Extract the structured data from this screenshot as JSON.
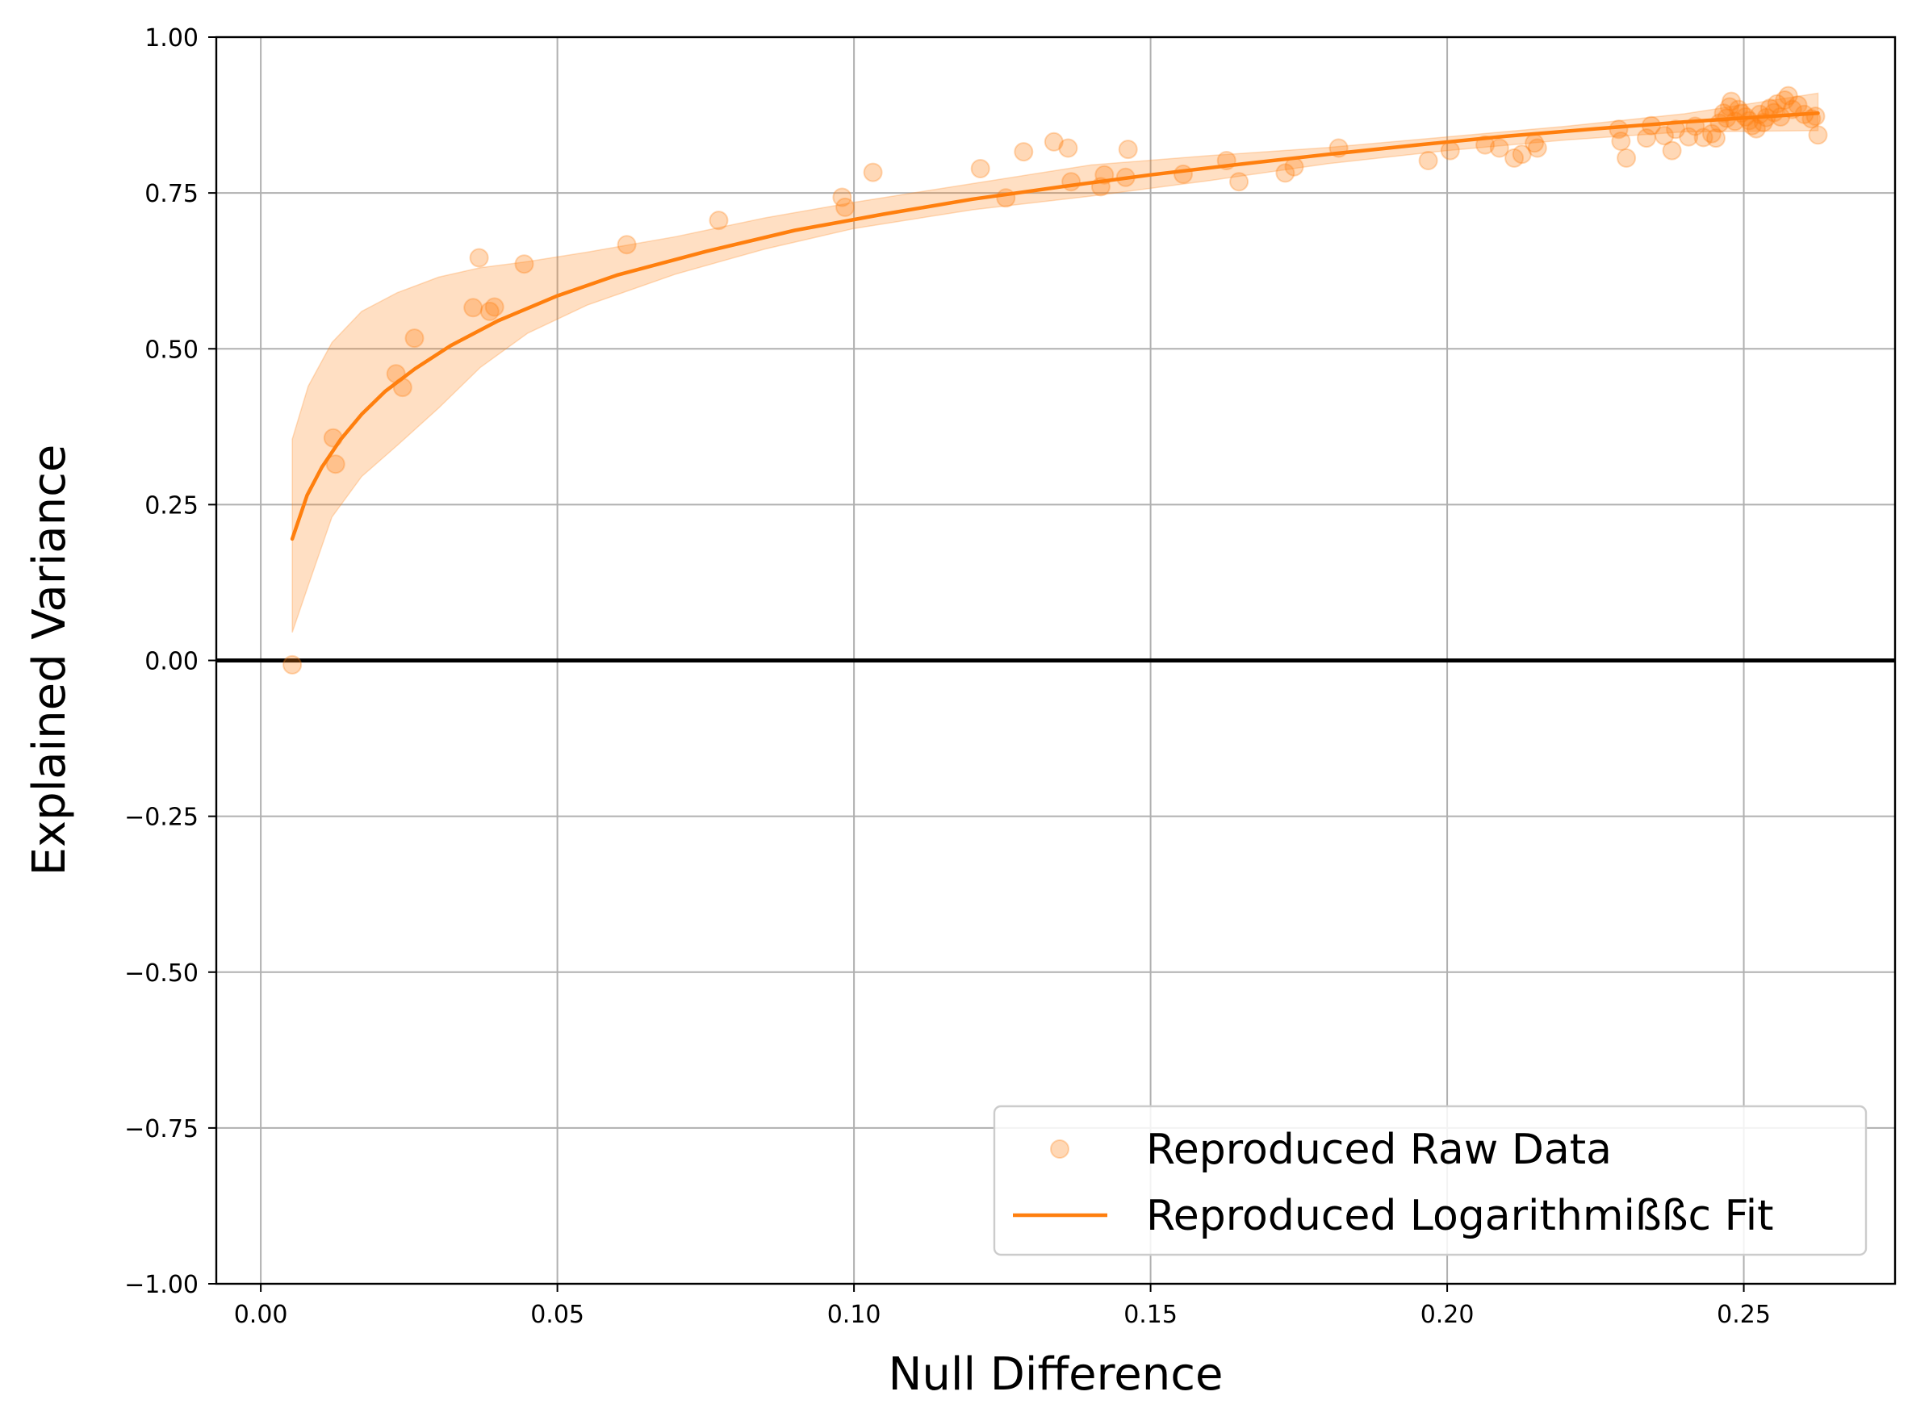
{
  "chart_data": {
    "type": "scatter",
    "xlabel": "Null Difference",
    "ylabel": "Explained Variance",
    "xlim": [
      -0.0075,
      0.2755
    ],
    "ylim": [
      -1.0,
      1.0
    ],
    "x_ticks": [
      0.0,
      0.05,
      0.1,
      0.15,
      0.2,
      0.25
    ],
    "x_tick_labels": [
      "0.00",
      "0.05",
      "0.10",
      "0.15",
      "0.20",
      "0.25"
    ],
    "y_ticks": [
      -1.0,
      -0.75,
      -0.5,
      -0.25,
      0.0,
      0.25,
      0.5,
      0.75,
      1.0
    ],
    "y_tick_labels": [
      "−1.00",
      "−0.75",
      "−0.50",
      "−0.25",
      "0.00",
      "0.25",
      "0.50",
      "0.75",
      "1.00"
    ],
    "grid": true,
    "reference_line_y": 0.0,
    "colors": {
      "series": "#ff7f0e",
      "reference": "#000000",
      "grid": "#b0b0b0"
    },
    "legend": {
      "placement": "lower-right",
      "entries": [
        {
          "label": "Reproduced Raw Data",
          "marker": "circle"
        },
        {
          "label": "Reproduced Logarithmißßc Fit",
          "marker": "line"
        }
      ]
    },
    "series": [
      {
        "name": "Reproduced Raw Data",
        "kind": "scatter",
        "points": [
          [
            0.0053,
            -0.007
          ],
          [
            0.0122,
            0.357
          ],
          [
            0.0126,
            0.315
          ],
          [
            0.0228,
            0.46
          ],
          [
            0.0239,
            0.438
          ],
          [
            0.0259,
            0.517
          ],
          [
            0.0358,
            0.566
          ],
          [
            0.0368,
            0.646
          ],
          [
            0.0386,
            0.56
          ],
          [
            0.0394,
            0.567
          ],
          [
            0.0444,
            0.636
          ],
          [
            0.0617,
            0.667
          ],
          [
            0.0772,
            0.706
          ],
          [
            0.098,
            0.743
          ],
          [
            0.0985,
            0.727
          ],
          [
            0.1032,
            0.783
          ],
          [
            0.1213,
            0.789
          ],
          [
            0.1256,
            0.742
          ],
          [
            0.1286,
            0.816
          ],
          [
            0.1337,
            0.832
          ],
          [
            0.1361,
            0.822
          ],
          [
            0.1366,
            0.768
          ],
          [
            0.1416,
            0.76
          ],
          [
            0.1422,
            0.779
          ],
          [
            0.1458,
            0.775
          ],
          [
            0.1462,
            0.82
          ],
          [
            0.1555,
            0.78
          ],
          [
            0.1628,
            0.802
          ],
          [
            0.1649,
            0.768
          ],
          [
            0.1727,
            0.782
          ],
          [
            0.1742,
            0.792
          ],
          [
            0.1817,
            0.822
          ],
          [
            0.1968,
            0.802
          ],
          [
            0.2005,
            0.818
          ],
          [
            0.2064,
            0.827
          ],
          [
            0.2088,
            0.822
          ],
          [
            0.2113,
            0.806
          ],
          [
            0.2126,
            0.812
          ],
          [
            0.2147,
            0.83
          ],
          [
            0.2152,
            0.822
          ],
          [
            0.2289,
            0.852
          ],
          [
            0.2293,
            0.833
          ],
          [
            0.2302,
            0.806
          ],
          [
            0.2336,
            0.838
          ],
          [
            0.2344,
            0.858
          ],
          [
            0.2366,
            0.842
          ],
          [
            0.2379,
            0.818
          ],
          [
            0.2385,
            0.852
          ],
          [
            0.2407,
            0.84
          ],
          [
            0.2418,
            0.857
          ],
          [
            0.2432,
            0.839
          ],
          [
            0.2446,
            0.845
          ],
          [
            0.2453,
            0.838
          ],
          [
            0.2459,
            0.862
          ],
          [
            0.2466,
            0.878
          ],
          [
            0.2471,
            0.87
          ],
          [
            0.2476,
            0.888
          ],
          [
            0.2479,
            0.897
          ],
          [
            0.2485,
            0.865
          ],
          [
            0.2491,
            0.884
          ],
          [
            0.2496,
            0.878
          ],
          [
            0.2503,
            0.872
          ],
          [
            0.2509,
            0.866
          ],
          [
            0.2514,
            0.858
          ],
          [
            0.2521,
            0.853
          ],
          [
            0.2527,
            0.876
          ],
          [
            0.2533,
            0.863
          ],
          [
            0.2538,
            0.871
          ],
          [
            0.2544,
            0.886
          ],
          [
            0.2551,
            0.879
          ],
          [
            0.2556,
            0.893
          ],
          [
            0.2562,
            0.872
          ],
          [
            0.2569,
            0.899
          ],
          [
            0.2575,
            0.906
          ],
          [
            0.2582,
            0.884
          ],
          [
            0.2591,
            0.891
          ],
          [
            0.2602,
            0.876
          ],
          [
            0.2614,
            0.869
          ],
          [
            0.2621,
            0.873
          ],
          [
            0.2625,
            0.843
          ]
        ]
      },
      {
        "name": "Reproduced Logarithmißßc Fit",
        "kind": "line",
        "x": [
          0.0053,
          0.0078,
          0.0103,
          0.0135,
          0.017,
          0.021,
          0.026,
          0.032,
          0.04,
          0.05,
          0.06,
          0.075,
          0.09,
          0.105,
          0.12,
          0.135,
          0.15,
          0.165,
          0.18,
          0.195,
          0.21,
          0.225,
          0.24,
          0.2625
        ],
        "y": [
          0.195,
          0.265,
          0.31,
          0.355,
          0.395,
          0.432,
          0.468,
          0.505,
          0.545,
          0.585,
          0.618,
          0.656,
          0.69,
          0.716,
          0.74,
          0.76,
          0.779,
          0.796,
          0.812,
          0.827,
          0.841,
          0.853,
          0.864,
          0.878
        ]
      }
    ],
    "confidence_band": {
      "name": "",
      "x": [
        0.0053,
        0.008,
        0.012,
        0.017,
        0.023,
        0.03,
        0.037,
        0.045,
        0.055,
        0.07,
        0.085,
        0.1,
        0.12,
        0.14,
        0.16,
        0.18,
        0.2,
        0.22,
        0.24,
        0.2625
      ],
      "upper": [
        0.355,
        0.44,
        0.51,
        0.56,
        0.59,
        0.615,
        0.63,
        0.64,
        0.655,
        0.68,
        0.71,
        0.735,
        0.765,
        0.795,
        0.81,
        0.823,
        0.84,
        0.857,
        0.877,
        0.91
      ],
      "lower": [
        0.045,
        0.12,
        0.23,
        0.295,
        0.345,
        0.405,
        0.47,
        0.525,
        0.57,
        0.62,
        0.66,
        0.693,
        0.723,
        0.745,
        0.77,
        0.797,
        0.818,
        0.835,
        0.848,
        0.85
      ]
    }
  }
}
